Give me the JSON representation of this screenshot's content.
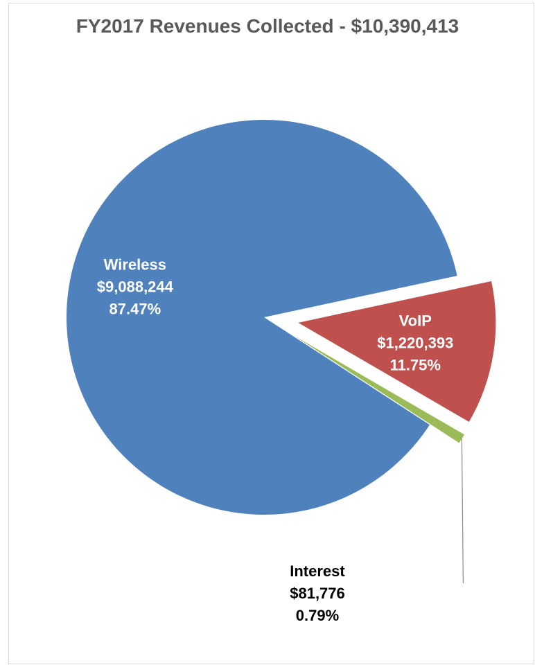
{
  "chart_data": {
    "type": "pie",
    "title": "FY2017 Revenues Collected - $10,390,413",
    "slices": [
      {
        "name": "Wireless",
        "amount": "$9,088,244",
        "percent_label": "87.47%",
        "value": 87.47,
        "color": "#4f81bd",
        "label_color": "#ffffff",
        "exploded": false
      },
      {
        "name": "VoIP",
        "amount": "$1,220,393",
        "percent_label": "11.75%",
        "value": 11.75,
        "color": "#c0504d",
        "label_color": "#ffffff",
        "exploded": true
      },
      {
        "name": "Interest",
        "amount": "$81,776",
        "percent_label": "0.79%",
        "value": 0.79,
        "color": "#9bbb59",
        "label_color": "#000000",
        "exploded": true
      }
    ]
  }
}
